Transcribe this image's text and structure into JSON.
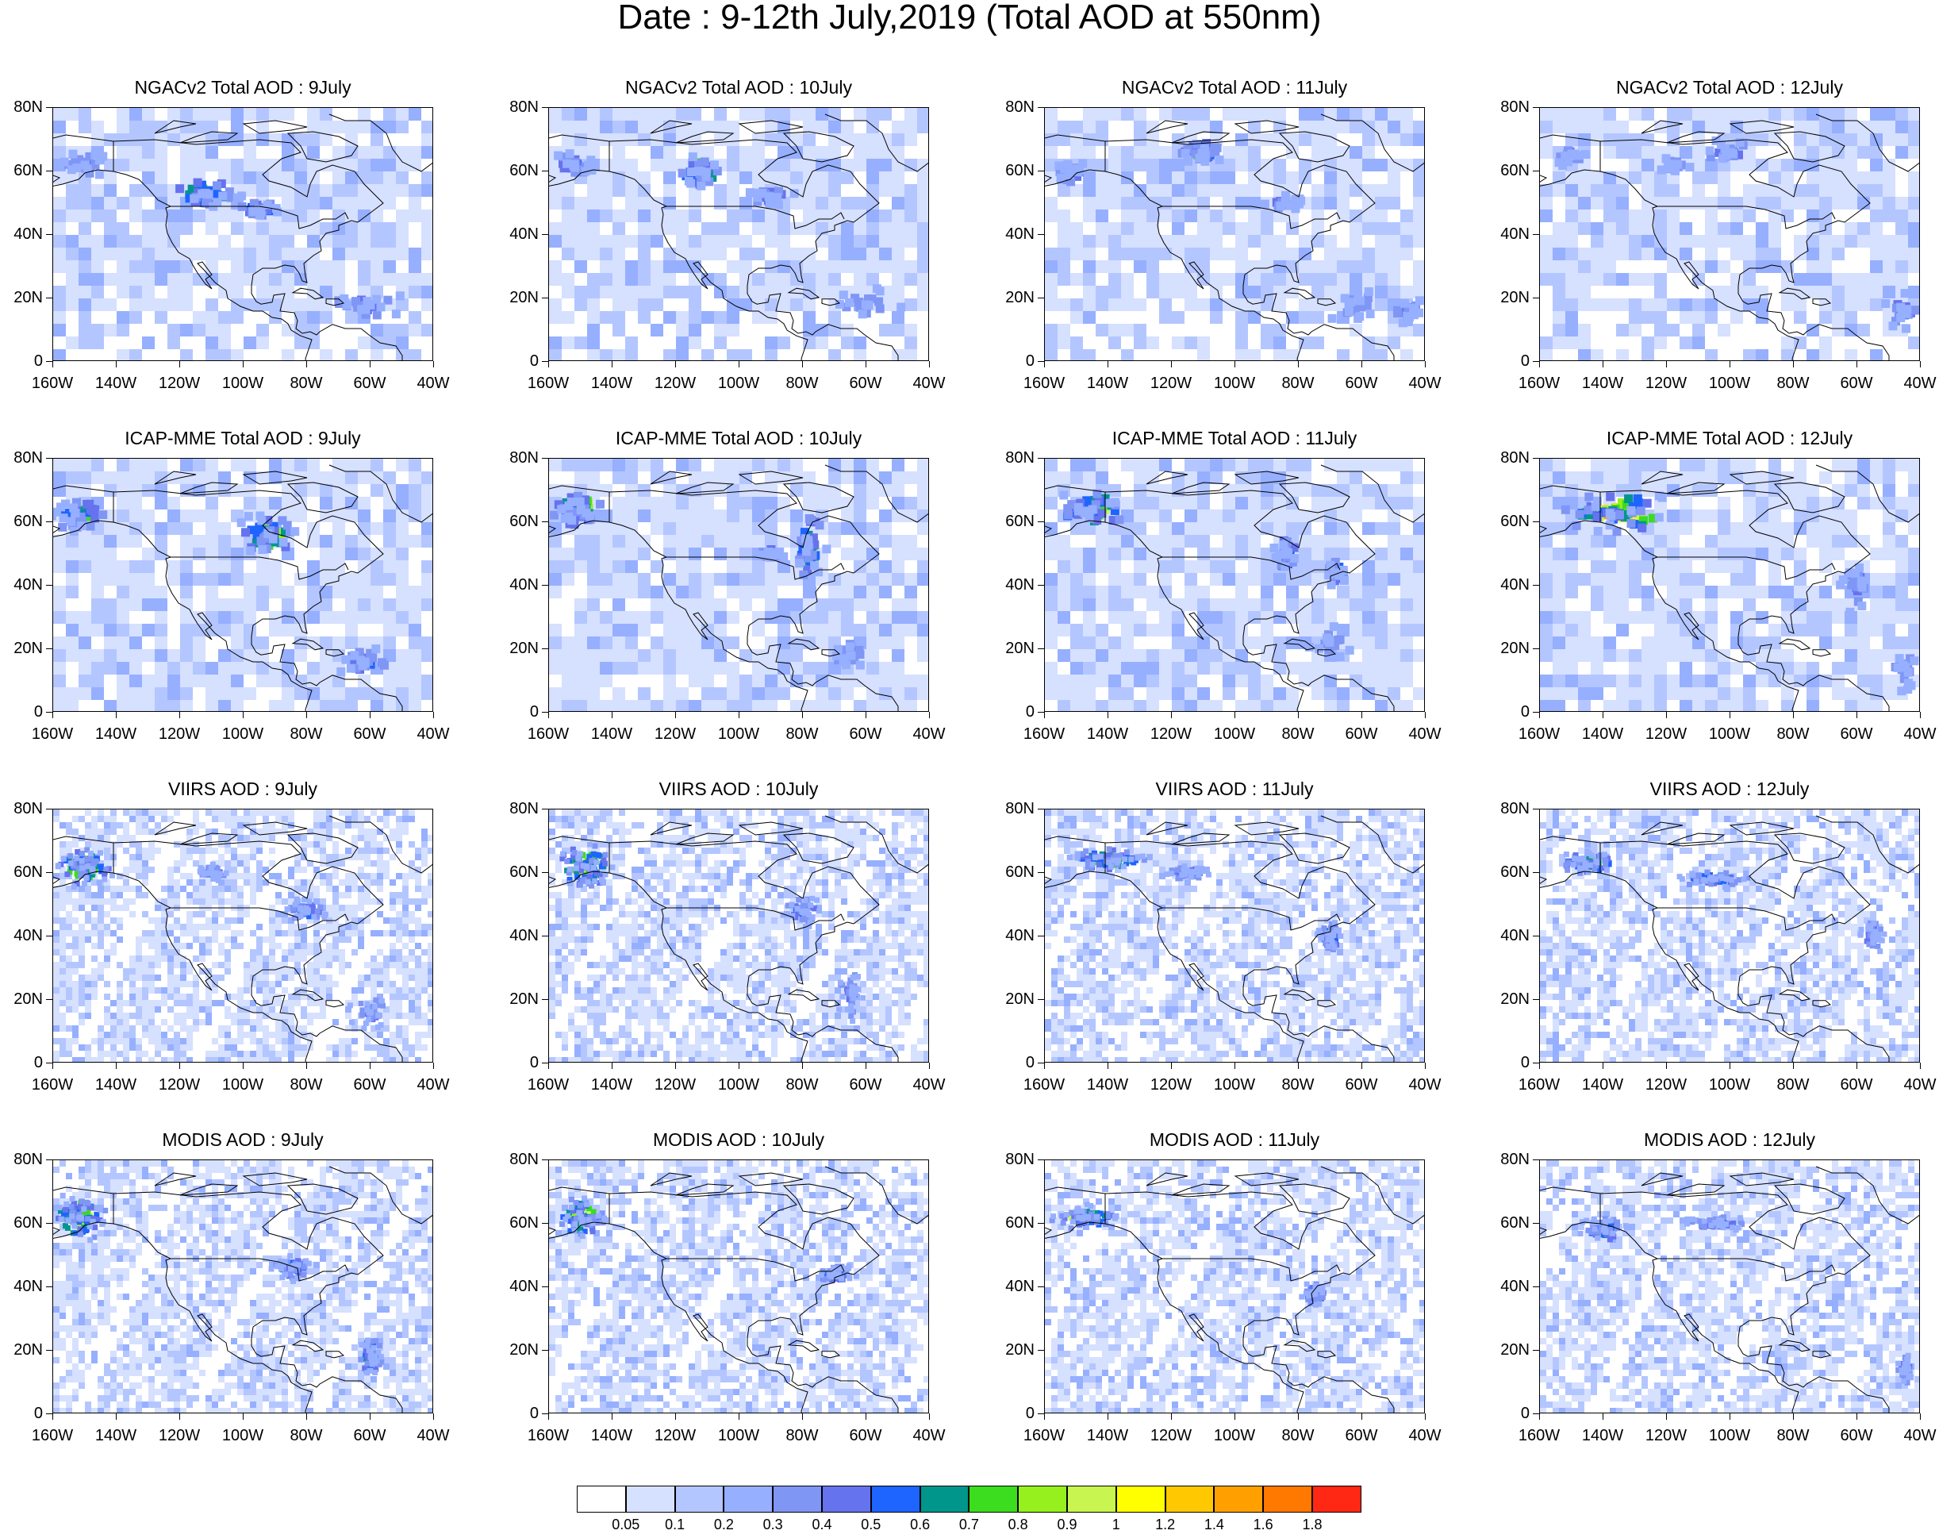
{
  "title": "Date : 9-12th July,2019 (Total AOD at 550nm)",
  "axes": {
    "y_labels": [
      "80N",
      "60N",
      "40N",
      "20N",
      "0"
    ],
    "x_labels": [
      "160W",
      "140W",
      "120W",
      "100W",
      "80W",
      "60W",
      "40W"
    ],
    "lat_range": [
      0,
      80
    ],
    "lon_range": [
      -160,
      -40
    ]
  },
  "panels": [
    {
      "title": "NGACv2 Total AOD : 9July",
      "row": 0,
      "col": 0
    },
    {
      "title": "NGACv2 Total AOD : 10July",
      "row": 0,
      "col": 1
    },
    {
      "title": "NGACv2 Total AOD : 11July",
      "row": 0,
      "col": 2
    },
    {
      "title": "NGACv2 Total AOD : 12July",
      "row": 0,
      "col": 3
    },
    {
      "title": "ICAP-MME Total AOD : 9July",
      "row": 1,
      "col": 0
    },
    {
      "title": "ICAP-MME Total AOD : 10July",
      "row": 1,
      "col": 1
    },
    {
      "title": "ICAP-MME Total AOD : 11July",
      "row": 1,
      "col": 2
    },
    {
      "title": "ICAP-MME Total AOD : 12July",
      "row": 1,
      "col": 3
    },
    {
      "title": "VIIRS AOD : 9July",
      "row": 2,
      "col": 0
    },
    {
      "title": "VIIRS AOD : 10July",
      "row": 2,
      "col": 1
    },
    {
      "title": "VIIRS AOD : 11July",
      "row": 2,
      "col": 2
    },
    {
      "title": "VIIRS AOD : 12July",
      "row": 2,
      "col": 3
    },
    {
      "title": "MODIS AOD : 9July",
      "row": 3,
      "col": 0
    },
    {
      "title": "MODIS AOD : 10July",
      "row": 3,
      "col": 1
    },
    {
      "title": "MODIS AOD : 11July",
      "row": 3,
      "col": 2
    },
    {
      "title": "MODIS AOD : 12July",
      "row": 3,
      "col": 3
    }
  ],
  "colorbar": {
    "colors": [
      "#ffffff",
      "#d6e0ff",
      "#b4c6ff",
      "#96afff",
      "#7f96f5",
      "#6673ee",
      "#1e64ff",
      "#00968c",
      "#3cdc1e",
      "#96f01e",
      "#c8f550",
      "#ffff00",
      "#ffc800",
      "#ffa000",
      "#ff7800",
      "#ff2814"
    ],
    "labels": [
      "0.05",
      "0.1",
      "0.2",
      "0.3",
      "0.4",
      "0.5",
      "0.6",
      "0.7",
      "0.8",
      "0.9",
      "1",
      "1.2",
      "1.4",
      "1.6",
      "1.8"
    ]
  }
}
